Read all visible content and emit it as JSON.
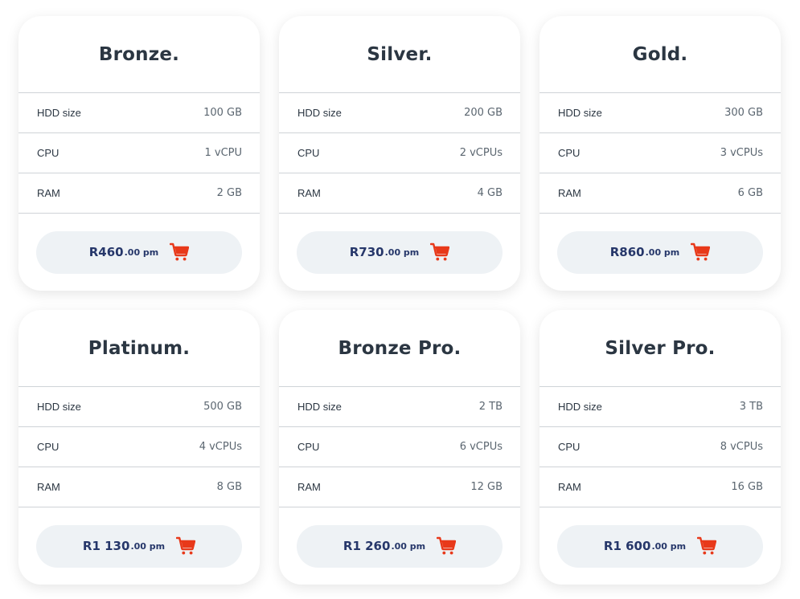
{
  "accent_color": "#e8391a",
  "price_color": "#26376a",
  "cart_icon": "shopping-cart-icon",
  "plans": [
    {
      "name": "Bronze.",
      "specs": [
        {
          "label": "HDD size",
          "value": "100 GB"
        },
        {
          "label": "CPU",
          "value": "1 vCPU"
        },
        {
          "label": "RAM",
          "value": "2 GB"
        }
      ],
      "price_main": "R460",
      "price_cents": ".00 pm"
    },
    {
      "name": "Silver.",
      "specs": [
        {
          "label": "HDD size",
          "value": "200 GB"
        },
        {
          "label": "CPU",
          "value": "2 vCPUs"
        },
        {
          "label": "RAM",
          "value": "4 GB"
        }
      ],
      "price_main": "R730",
      "price_cents": ".00 pm"
    },
    {
      "name": "Gold.",
      "specs": [
        {
          "label": "HDD size",
          "value": "300 GB"
        },
        {
          "label": "CPU",
          "value": "3 vCPUs"
        },
        {
          "label": "RAM",
          "value": "6 GB"
        }
      ],
      "price_main": "R860",
      "price_cents": ".00 pm"
    },
    {
      "name": "Platinum.",
      "specs": [
        {
          "label": "HDD size",
          "value": "500 GB"
        },
        {
          "label": "CPU",
          "value": "4 vCPUs"
        },
        {
          "label": "RAM",
          "value": "8 GB"
        }
      ],
      "price_main": "R1 130",
      "price_cents": ".00 pm"
    },
    {
      "name": "Bronze Pro.",
      "specs": [
        {
          "label": "HDD size",
          "value": "2 TB"
        },
        {
          "label": "CPU",
          "value": "6 vCPUs"
        },
        {
          "label": "RAM",
          "value": "12 GB"
        }
      ],
      "price_main": "R1 260",
      "price_cents": ".00 pm"
    },
    {
      "name": "Silver Pro.",
      "specs": [
        {
          "label": "HDD size",
          "value": "3 TB"
        },
        {
          "label": "CPU",
          "value": "8 vCPUs"
        },
        {
          "label": "RAM",
          "value": "16 GB"
        }
      ],
      "price_main": "R1 600",
      "price_cents": ".00 pm"
    }
  ]
}
